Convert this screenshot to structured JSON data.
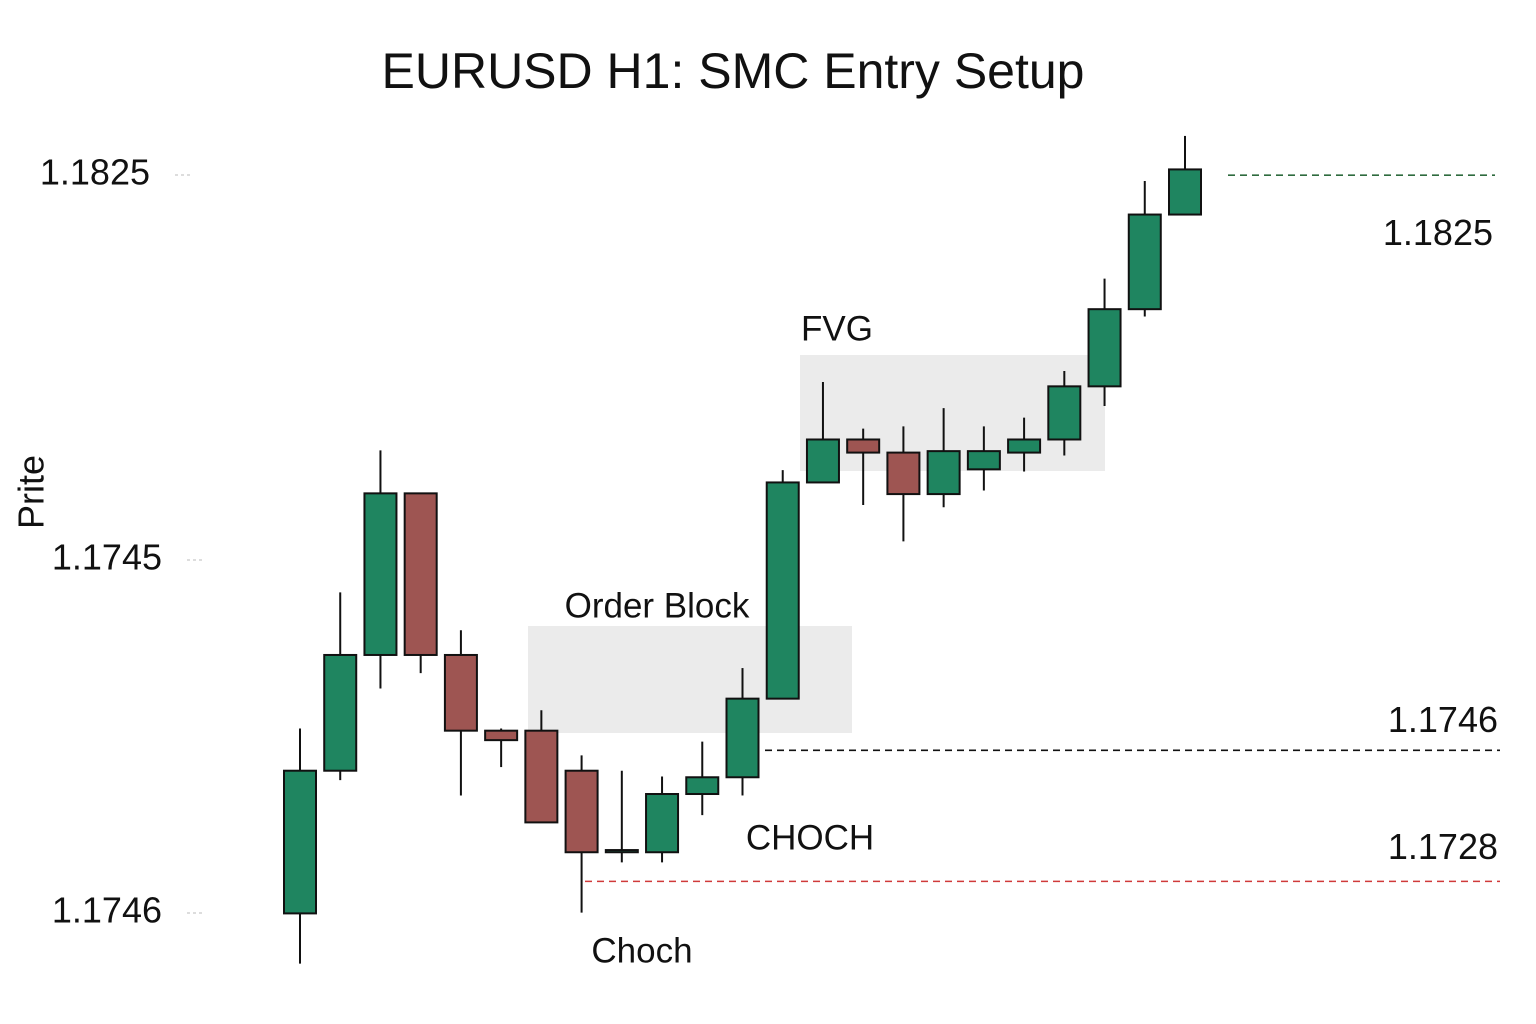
{
  "chart_data": {
    "type": "candlestick",
    "title": "EURUSD H1: SMC Entry Setup",
    "y_label": "Prite",
    "y_axis_texts": [
      "1.1825",
      "1.1745",
      "1.1746"
    ],
    "ylim": [
      1.1715,
      1.1833
    ],
    "up_color": "#1f8560",
    "down_color": "#9e5552",
    "open": [
      1.17236,
      1.17432,
      1.17591,
      1.17813,
      1.17591,
      1.17487,
      1.17487,
      1.17432,
      1.1732,
      1.1732,
      1.174,
      1.17423,
      1.17531,
      1.17828,
      1.17887,
      1.17869,
      1.17812,
      1.17846,
      1.17869,
      1.17887,
      1.1796,
      1.18066,
      1.18196
    ],
    "high": [
      1.1749,
      1.17677,
      1.17872,
      1.17813,
      1.17625,
      1.1749,
      1.17515,
      1.17453,
      1.17432,
      1.17424,
      1.17472,
      1.17573,
      1.17845,
      1.17966,
      1.17902,
      1.17905,
      1.1793,
      1.17905,
      1.17917,
      1.17981,
      1.18108,
      1.18242,
      1.18304
    ],
    "low": [
      1.17167,
      1.17419,
      1.17545,
      1.17566,
      1.17398,
      1.17437,
      1.17361,
      1.17237,
      1.17306,
      1.17306,
      1.17371,
      1.17398,
      1.17531,
      1.17828,
      1.17797,
      1.17747,
      1.17794,
      1.17817,
      1.17843,
      1.17865,
      1.17933,
      1.18056,
      1.18196
    ],
    "close": [
      1.17432,
      1.17591,
      1.17813,
      1.17591,
      1.17487,
      1.17474,
      1.17361,
      1.1732,
      1.17323,
      1.174,
      1.17423,
      1.17531,
      1.17828,
      1.17887,
      1.17869,
      1.17812,
      1.17871,
      1.17871,
      1.17887,
      1.1796,
      1.18066,
      1.18196,
      1.18258
    ],
    "levels": [
      {
        "value": 1.1825,
        "color": "#2e6b3e"
      },
      {
        "value": 1.1746,
        "color": "#111111"
      },
      {
        "value": 1.1728,
        "color": "#d03a3a"
      }
    ],
    "zones": [
      {
        "label": "Order Block"
      },
      {
        "label": "FVG"
      }
    ],
    "annotations": [
      "CHOCH",
      "Choch"
    ]
  }
}
